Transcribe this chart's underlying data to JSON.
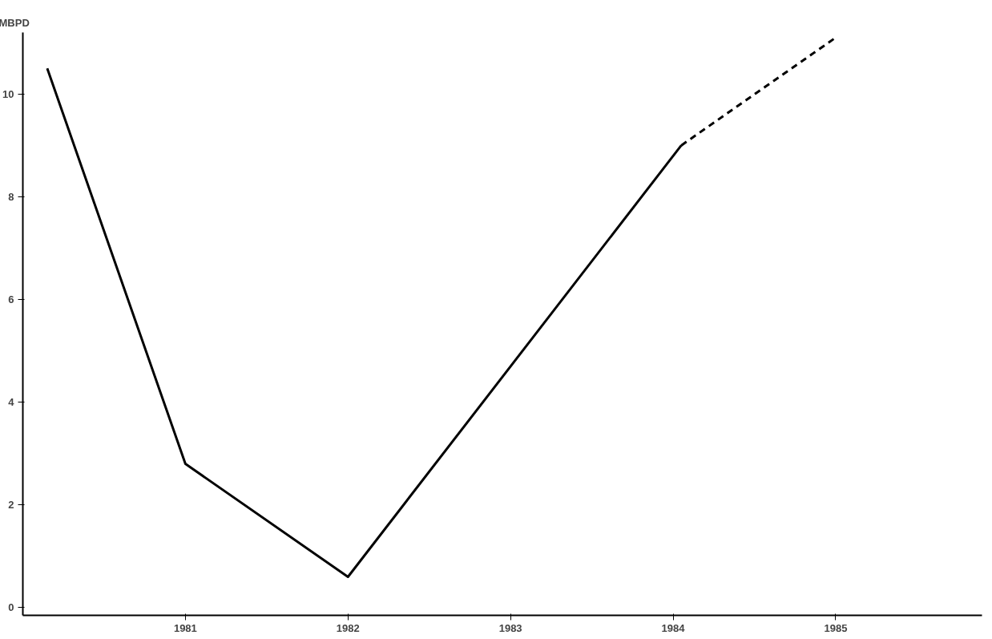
{
  "chart_data": {
    "type": "line",
    "ylabel": "MBPD",
    "xlim": [
      1980,
      1985.9
    ],
    "ylim": [
      -0.15,
      11.2
    ],
    "xticks": [
      1981,
      1982,
      1983,
      1984,
      1985
    ],
    "yticks": [
      0,
      2,
      4,
      6,
      8,
      10
    ],
    "grid": false,
    "marker": "none",
    "series": [
      {
        "color": "#000000",
        "line_style": "solid",
        "x": [
          1980.15,
          1981,
          1982,
          1984.05
        ],
        "values": [
          10.5,
          2.8,
          0.6,
          9.0
        ]
      },
      {
        "color": "#000000",
        "line_style": "dashed",
        "x": [
          1984.05,
          1985
        ],
        "values": [
          9.0,
          11.1
        ]
      }
    ]
  }
}
